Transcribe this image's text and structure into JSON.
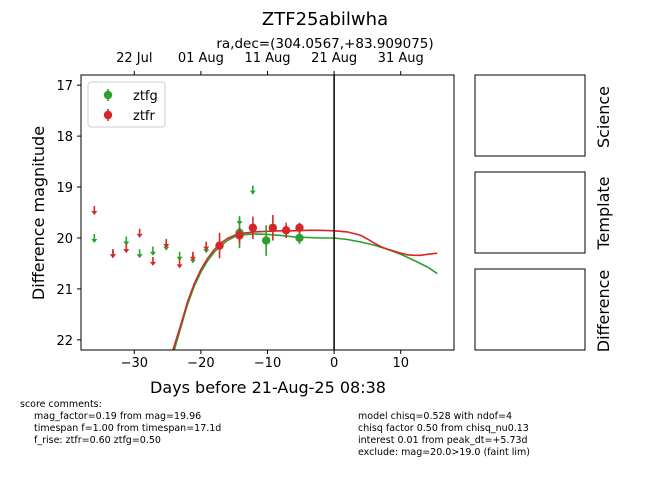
{
  "chart_data": {
    "type": "scatter",
    "title": "ZTF25abilwha",
    "subtitle": "ra,dec=(304.0567,+83.909075)",
    "xlabel": "Days before 21-Aug-25 08:38",
    "ylabel": "Difference magnitude",
    "xlim": [
      -38,
      18
    ],
    "ylim": [
      22.2,
      16.8
    ],
    "x_ticks": [
      -30,
      -20,
      -10,
      0,
      10
    ],
    "y_ticks": [
      17,
      18,
      19,
      20,
      21,
      22
    ],
    "top_axis_ticks": [
      {
        "label": "22 Jul",
        "x": -30
      },
      {
        "label": "01 Aug",
        "x": -20
      },
      {
        "label": "11 Aug",
        "x": -10
      },
      {
        "label": "21 Aug",
        "x": 0
      },
      {
        "label": "31 Aug",
        "x": 10
      }
    ],
    "vline_x": 0,
    "legend_position": "upper-left",
    "series": [
      {
        "name": "ztfg",
        "color": "#2ca02c",
        "detections": [
          {
            "x": -14.2,
            "y": 19.9,
            "err": 0.3
          },
          {
            "x": -10.2,
            "y": 20.05,
            "err": 0.3
          },
          {
            "x": -5.2,
            "y": 20.0,
            "err": 0.12
          }
        ],
        "upper_limits": [
          {
            "x": -36,
            "y": 20.0
          },
          {
            "x": -33.2,
            "y": 20.3
          },
          {
            "x": -31.2,
            "y": 20.05
          },
          {
            "x": -29.2,
            "y": 20.3
          },
          {
            "x": -27.2,
            "y": 20.25
          },
          {
            "x": -25.2,
            "y": 20.15
          },
          {
            "x": -23.2,
            "y": 20.35
          },
          {
            "x": -21.2,
            "y": 20.4
          },
          {
            "x": -19.2,
            "y": 20.2
          },
          {
            "x": -14.2,
            "y": 19.65
          },
          {
            "x": -12.2,
            "y": 19.05
          },
          {
            "x": -5.2,
            "y": 19.95
          }
        ],
        "model_curve": [
          [
            -24,
            22.2
          ],
          [
            -23,
            21.75
          ],
          [
            -22,
            21.3
          ],
          [
            -21,
            20.95
          ],
          [
            -20,
            20.67
          ],
          [
            -19,
            20.45
          ],
          [
            -18,
            20.28
          ],
          [
            -17,
            20.15
          ],
          [
            -16,
            20.05
          ],
          [
            -15,
            19.98
          ],
          [
            -14,
            19.94
          ],
          [
            -12,
            19.92
          ],
          [
            -10,
            19.93
          ],
          [
            -8,
            19.95
          ],
          [
            -6,
            19.98
          ],
          [
            -4,
            19.99
          ],
          [
            -2,
            20.0
          ],
          [
            0,
            20.0
          ],
          [
            2,
            20.03
          ],
          [
            4,
            20.08
          ],
          [
            6,
            20.14
          ],
          [
            8,
            20.22
          ],
          [
            10,
            20.32
          ],
          [
            12,
            20.44
          ],
          [
            14,
            20.57
          ],
          [
            15.5,
            20.7
          ]
        ]
      },
      {
        "name": "ztfr",
        "color": "#d62728",
        "detections": [
          {
            "x": -17.2,
            "y": 20.15,
            "err": 0.25
          },
          {
            "x": -14.2,
            "y": 19.95,
            "err": 0.15
          },
          {
            "x": -12.2,
            "y": 19.8,
            "err": 0.22
          },
          {
            "x": -9.2,
            "y": 19.8,
            "err": 0.25
          },
          {
            "x": -7.2,
            "y": 19.85,
            "err": 0.15
          },
          {
            "x": -5.2,
            "y": 19.8,
            "err": 0.1
          }
        ],
        "upper_limits": [
          {
            "x": -36,
            "y": 19.45
          },
          {
            "x": -33.2,
            "y": 20.3
          },
          {
            "x": -31.2,
            "y": 20.2
          },
          {
            "x": -29.2,
            "y": 19.9
          },
          {
            "x": -27.2,
            "y": 20.45
          },
          {
            "x": -25.2,
            "y": 20.1
          },
          {
            "x": -23.2,
            "y": 20.5
          },
          {
            "x": -21.2,
            "y": 20.35
          },
          {
            "x": -19.2,
            "y": 20.15
          }
        ],
        "model_curve": [
          [
            -24.2,
            22.2
          ],
          [
            -23,
            21.7
          ],
          [
            -22,
            21.25
          ],
          [
            -21,
            20.9
          ],
          [
            -20,
            20.62
          ],
          [
            -19,
            20.4
          ],
          [
            -18,
            20.23
          ],
          [
            -17,
            20.1
          ],
          [
            -16,
            20.01
          ],
          [
            -15,
            19.95
          ],
          [
            -14,
            19.91
          ],
          [
            -12,
            19.88
          ],
          [
            -10,
            19.87
          ],
          [
            -8,
            19.86
          ],
          [
            -6,
            19.86
          ],
          [
            -4,
            19.85
          ],
          [
            -2,
            19.85
          ],
          [
            0,
            19.86
          ],
          [
            2,
            19.88
          ],
          [
            4,
            19.95
          ],
          [
            5,
            20.02
          ],
          [
            6,
            20.1
          ],
          [
            7,
            20.17
          ],
          [
            8,
            20.22
          ],
          [
            9,
            20.26
          ],
          [
            10,
            20.3
          ],
          [
            11,
            20.33
          ],
          [
            12,
            20.34
          ],
          [
            13,
            20.34
          ],
          [
            14,
            20.32
          ],
          [
            15.5,
            20.3
          ]
        ]
      }
    ]
  },
  "side_panels": [
    {
      "label": "Science"
    },
    {
      "label": "Template"
    },
    {
      "label": "Difference"
    }
  ],
  "comments": {
    "header": "score comments:",
    "left": [
      "mag_factor=0.19 from mag=19.96",
      "timespan f=1.00 from timespan=17.1d",
      "f_rise: ztfr=0.60 ztfg=0.50"
    ],
    "right": [
      "model chisq=0.528 with ndof=4",
      "chisq factor 0.50 from chisq_nu0.13",
      "interest 0.01 from peak_dt=+5.73d",
      "exclude: mag=20.0>19.0 (faint lim)"
    ]
  }
}
